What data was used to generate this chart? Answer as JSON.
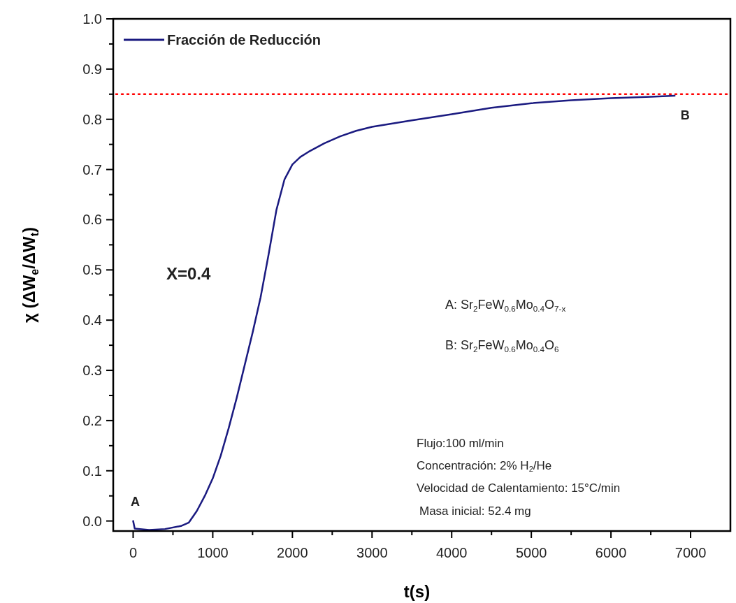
{
  "chart_data": {
    "type": "line",
    "xlabel": "t(s)",
    "ylabel": "χ (ΔW$_{e}$/ΔW$_{t}$)",
    "x": [
      0,
      20,
      200,
      400,
      600,
      700,
      800,
      900,
      1000,
      1100,
      1200,
      1300,
      1400,
      1500,
      1600,
      1700,
      1800,
      1900,
      2000,
      2100,
      2200,
      2400,
      2600,
      2800,
      3000,
      3500,
      4000,
      4500,
      5000,
      5500,
      6000,
      6500,
      6800
    ],
    "series": [
      {
        "name": "Fracción de Reducción",
        "color": "#1a1a80",
        "values": [
          0.0,
          -0.015,
          -0.018,
          -0.016,
          -0.01,
          -0.003,
          0.02,
          0.05,
          0.085,
          0.13,
          0.185,
          0.245,
          0.31,
          0.375,
          0.445,
          0.53,
          0.62,
          0.68,
          0.71,
          0.725,
          0.735,
          0.752,
          0.766,
          0.777,
          0.785,
          0.798,
          0.81,
          0.823,
          0.832,
          0.838,
          0.842,
          0.845,
          0.847
        ]
      }
    ],
    "xlim": [
      -250,
      7500
    ],
    "ylim": [
      -0.02,
      1.0
    ],
    "xticks": [
      0,
      {
        "value": 500,
        "label": null
      },
      1000,
      {
        "value": 1500,
        "label": null
      },
      2000,
      {
        "value": 2500,
        "label": null
      },
      3000,
      {
        "value": 3500,
        "label": null
      },
      4000,
      {
        "value": 4500,
        "label": null
      },
      5000,
      {
        "value": 5500,
        "label": null
      },
      6000,
      {
        "value": 6500,
        "label": null
      },
      7000
    ],
    "yticks": [
      {
        "value": 0,
        "label": "0.0"
      },
      {
        "value": 0.05,
        "label": null
      },
      0.1,
      {
        "value": 0.15,
        "label": null
      },
      0.2,
      {
        "value": 0.25,
        "label": null
      },
      0.3,
      {
        "value": 0.35,
        "label": null
      },
      0.4,
      {
        "value": 0.45,
        "label": null
      },
      0.5,
      {
        "value": 0.55,
        "label": null
      },
      0.6,
      {
        "value": 0.65,
        "label": null
      },
      0.7,
      {
        "value": 0.75,
        "label": null
      },
      0.8,
      {
        "value": 0.85,
        "label": null
      },
      0.9,
      {
        "value": 0.95,
        "label": null
      },
      {
        "value": 1,
        "label": "1.0"
      }
    ],
    "ref_lines": [
      {
        "axis": "y",
        "value": 0.85,
        "color": "#ff0000",
        "line_style": "dotted"
      }
    ],
    "legend": "top left",
    "marker": "none",
    "line_style": "solid",
    "grid": false,
    "annotations": [
      {
        "text": "A",
        "x": 0,
        "y": 0.0
      },
      {
        "text": "B",
        "x": 6800,
        "y": 0.847
      },
      "X=0.4",
      "A: Sr$_{2}$FeW$_{0.6}$Mo$_{0.4}$O$_{7-x}$",
      "B: Sr$_{2}$FeW$_{0.6}$Mo$_{0.4}$O$_{6}$",
      "Flujo:100 ml/min",
      "Concentración: 2% H$_{2}$/He",
      "Velocidad de Calentamiento: 15°C/min",
      "Masa inicial: 52.4 mg"
    ]
  }
}
